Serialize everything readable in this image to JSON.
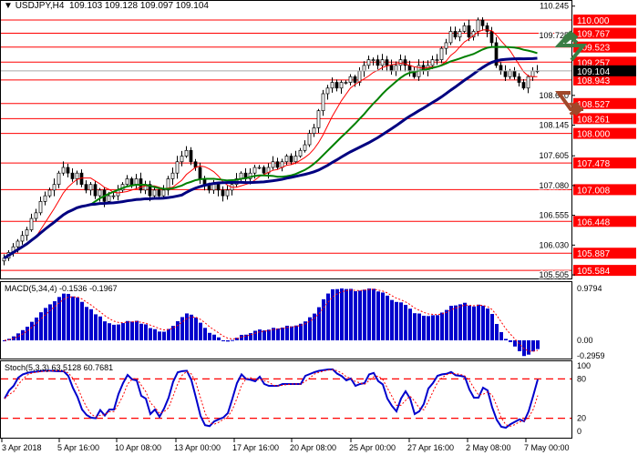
{
  "header": {
    "symbol": "USDJPY,H4",
    "open": "109.103",
    "high": "109.128",
    "low": "109.097",
    "close": "109.104"
  },
  "macd": {
    "label": "MACD(5,34,4)",
    "main": "-0.1536",
    "signal": "-0.1967",
    "scale_top": "0.9794",
    "scale_zero": "0.00",
    "scale_bottom": "-0.2959"
  },
  "stoch": {
    "label": "Stoch(5,3,3)",
    "k": "63.5128",
    "d": "60.7681",
    "levels": [
      "100",
      "80",
      "20",
      "0"
    ]
  },
  "colors": {
    "level_line": "#ff0000",
    "level_label_bg": "#ff0000",
    "ma_fast": "#ff0000",
    "ma_mid": "#008000",
    "ma_slow": "#000080",
    "histogram": "#0000cc",
    "current_price_bg": "#000000",
    "arrow_up": "#3a7d44",
    "arrow_down": "#a0482a"
  },
  "chart_data": {
    "type": "candlestick",
    "title": "USDJPY,H4",
    "price_scale_ticks": [
      "110.245",
      "109.725",
      "108.670",
      "108.145",
      "107.605",
      "107.080",
      "106.555",
      "106.030",
      "105.505"
    ],
    "levels": [
      "110.000",
      "109.767",
      "109.523",
      "109.257",
      "108.943",
      "108.527",
      "108.261",
      "108.000",
      "107.478",
      "107.008",
      "106.448",
      "105.887",
      "105.584"
    ],
    "current_price": "109.104",
    "time_labels": [
      "3 Apr 2018",
      "5 Apr 16:00",
      "10 Apr 08:00",
      "13 Apr 00:00",
      "17 Apr 16:00",
      "20 Apr 08:00",
      "25 Apr 00:00",
      "27 Apr 16:00",
      "2 May 08:00",
      "7 May 00:00"
    ],
    "closes": [
      105.8,
      105.9,
      106.0,
      106.1,
      106.2,
      106.3,
      106.5,
      106.6,
      106.8,
      106.9,
      107.0,
      107.1,
      107.3,
      107.4,
      107.3,
      107.2,
      107.3,
      107.1,
      107.0,
      107.1,
      106.9,
      107.0,
      106.8,
      106.9,
      106.9,
      107.0,
      107.1,
      107.2,
      107.1,
      107.2,
      107.0,
      107.1,
      106.9,
      107.0,
      106.9,
      107.0,
      107.2,
      107.3,
      107.5,
      107.6,
      107.7,
      107.5,
      107.4,
      107.2,
      107.1,
      107.0,
      107.1,
      107.0,
      106.9,
      107.0,
      107.1,
      107.2,
      107.3,
      107.2,
      107.3,
      107.4,
      107.4,
      107.3,
      107.4,
      107.5,
      107.4,
      107.5,
      107.6,
      107.5,
      107.6,
      107.7,
      107.8,
      108.0,
      108.1,
      108.4,
      108.7,
      108.8,
      108.9,
      108.8,
      108.9,
      108.9,
      109.0,
      108.9,
      109.1,
      109.2,
      109.3,
      109.3,
      109.2,
      109.3,
      109.2,
      109.1,
      109.2,
      109.3,
      109.2,
      109.1,
      109.0,
      109.2,
      109.1,
      109.2,
      109.3,
      109.3,
      109.5,
      109.6,
      109.8,
      109.7,
      109.8,
      109.9,
      109.7,
      109.8,
      110.0,
      109.9,
      109.8,
      109.6,
      109.2,
      109.1,
      109.0,
      109.1,
      109.0,
      108.9,
      108.8,
      109.0,
      109.1,
      109.104
    ]
  }
}
